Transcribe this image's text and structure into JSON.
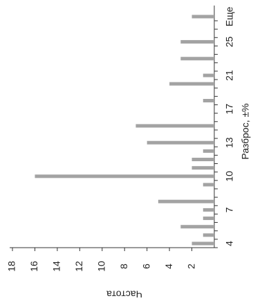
{
  "chart_data": {
    "type": "bar",
    "orientation": "horizontal",
    "title": "Частота",
    "x_label": "Разброс, ±%",
    "categories": [
      "4",
      null,
      null,
      null,
      "7",
      null,
      null,
      null,
      "10",
      null,
      null,
      null,
      "13",
      null,
      null,
      null,
      "17",
      null,
      null,
      null,
      "21",
      null,
      null,
      null,
      "25",
      null,
      null,
      "Еще"
    ],
    "values": [
      2,
      1,
      3,
      1,
      1,
      5,
      0,
      1,
      16,
      2,
      2,
      1,
      6,
      0,
      7,
      0,
      0,
      1,
      0,
      4,
      1,
      0,
      3,
      0,
      3,
      0,
      0,
      2
    ],
    "color": "#a3a3a3",
    "ylim": [
      0,
      18
    ],
    "yticks": [
      2,
      4,
      6,
      8,
      10,
      12,
      14,
      16,
      18
    ]
  }
}
